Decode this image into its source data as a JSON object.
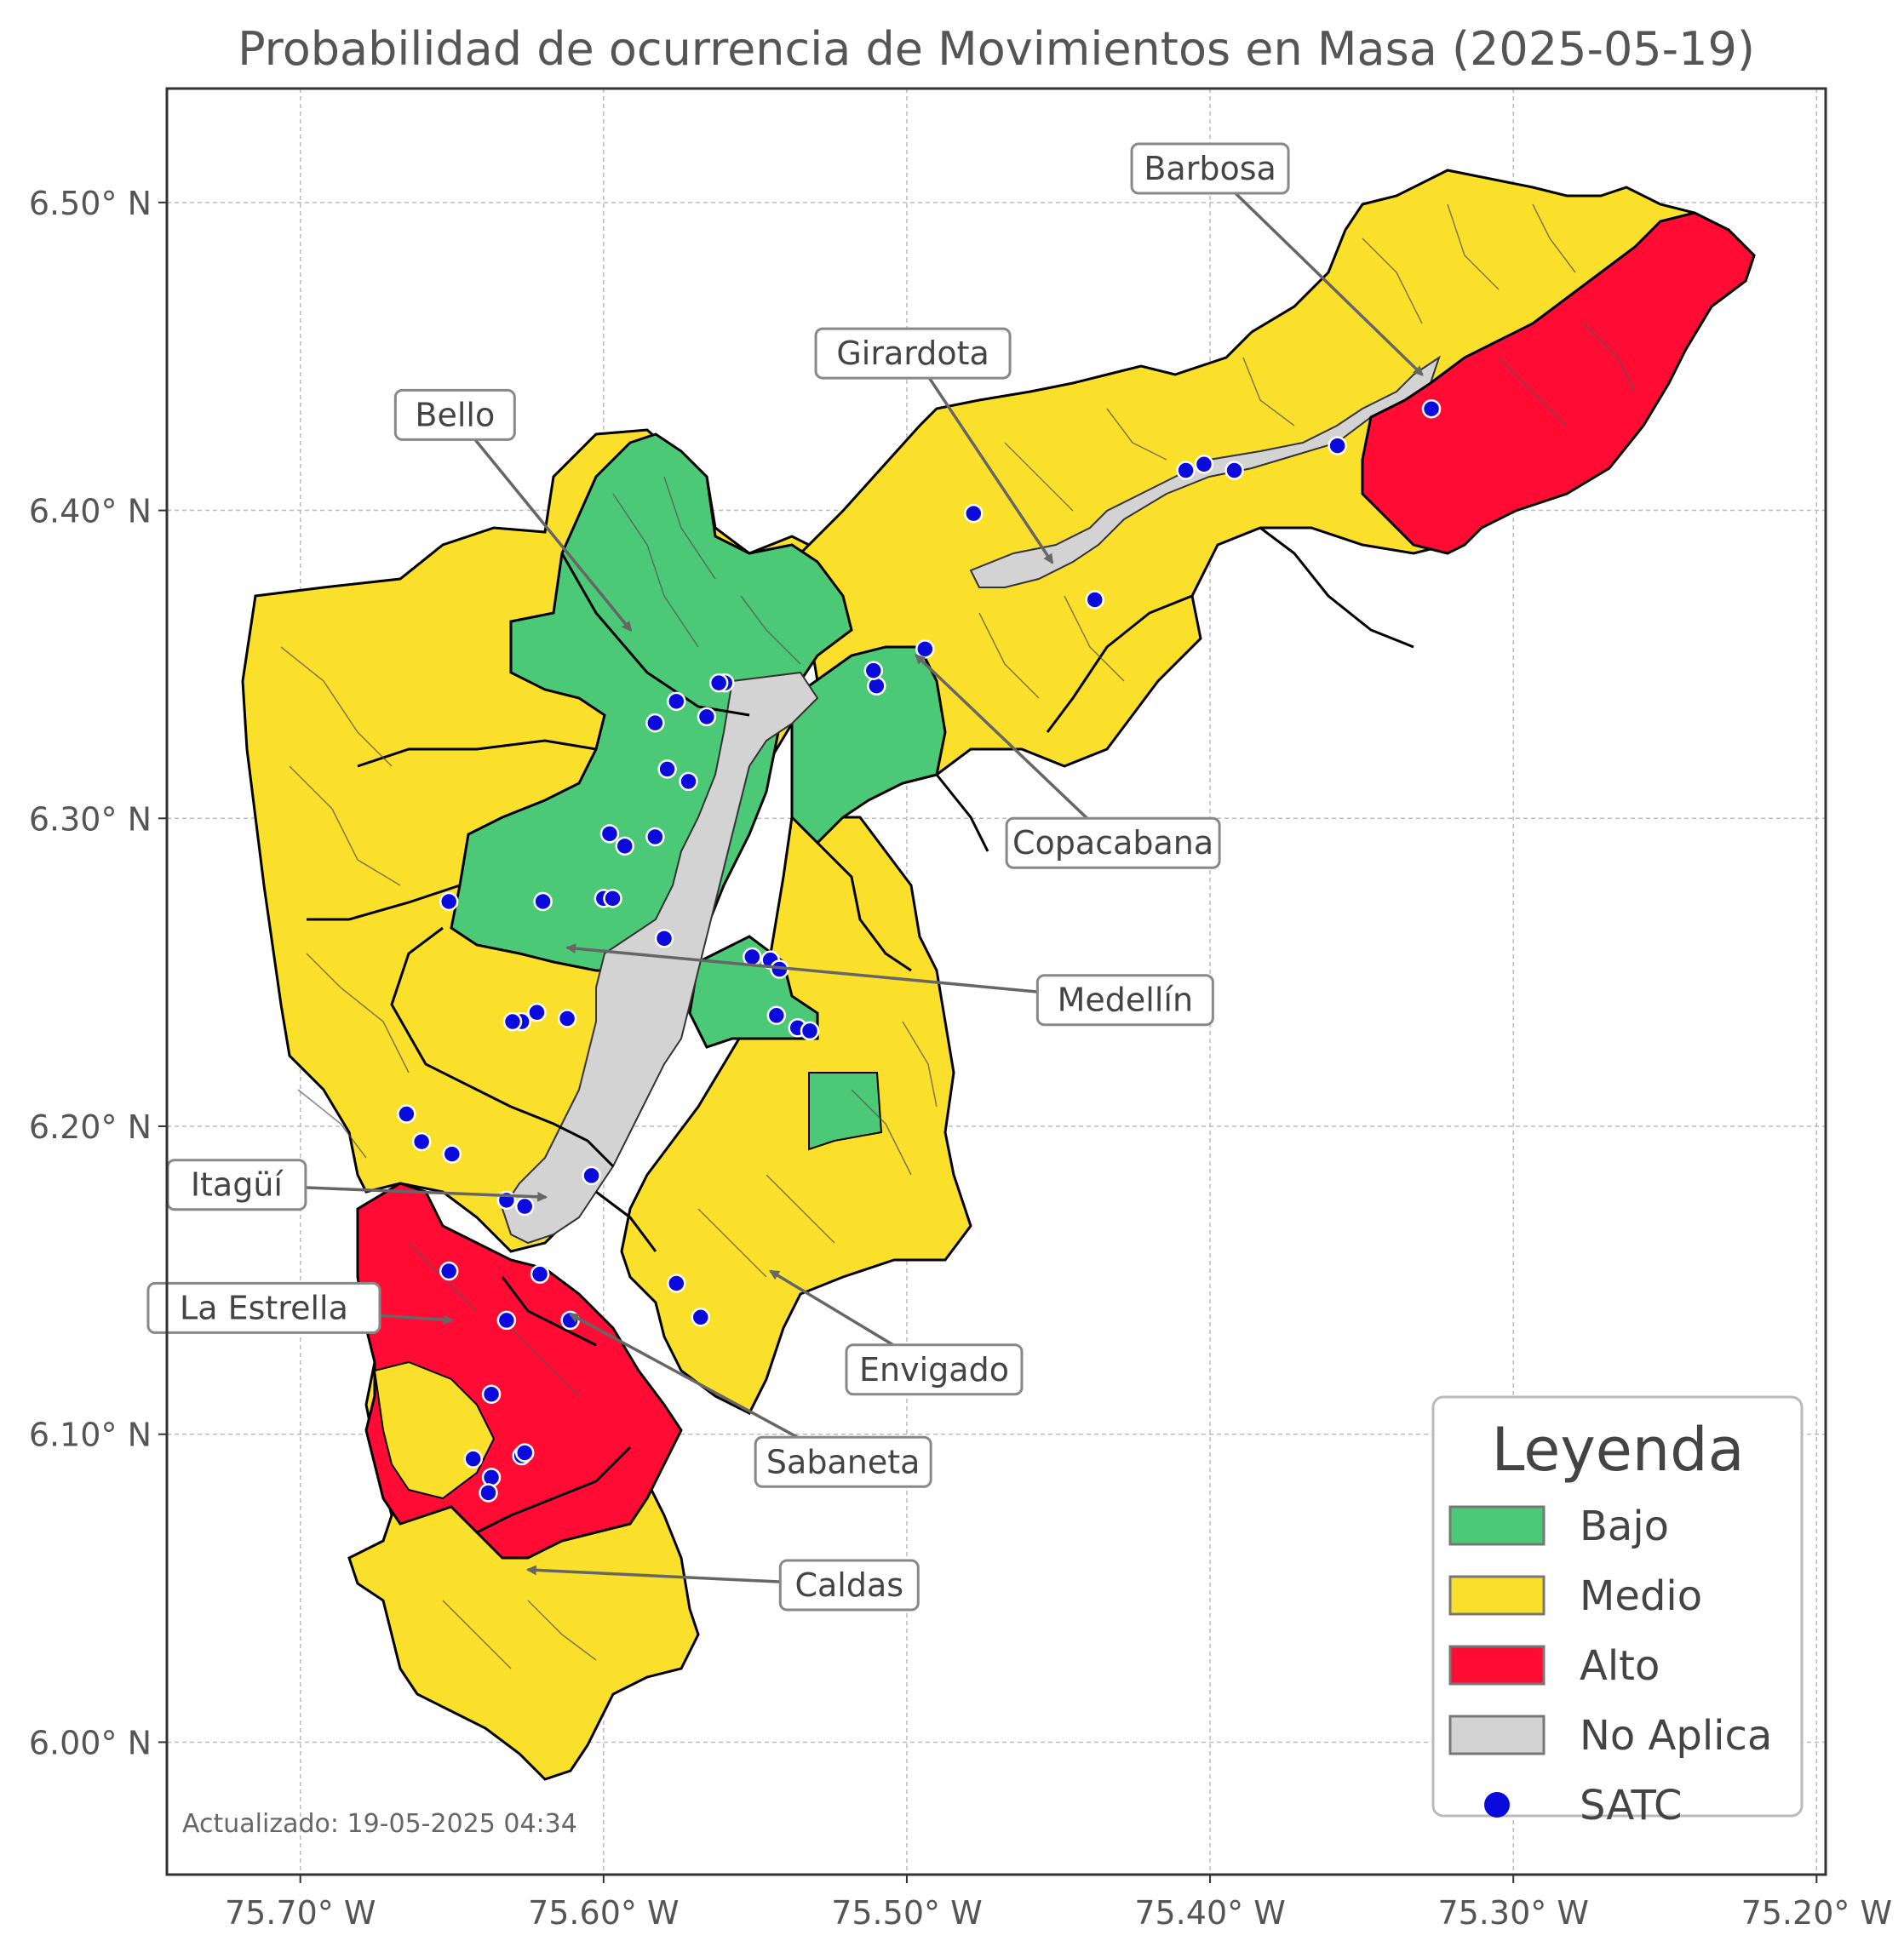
{
  "title": "Probabilidad de ocurrencia de Movimientos en Masa (2025-05-19)",
  "updated": "Actualizado: 19-05-2025 04:34",
  "axes": {
    "lon_range": [
      -75.744,
      -75.197
    ],
    "lat_range": [
      5.957,
      6.537
    ],
    "x_ticks": [
      {
        "value": -75.7,
        "label": "75.70° W"
      },
      {
        "value": -75.6,
        "label": "75.60° W"
      },
      {
        "value": -75.5,
        "label": "75.50° W"
      },
      {
        "value": -75.4,
        "label": "75.40° W"
      },
      {
        "value": -75.3,
        "label": "75.30° W"
      },
      {
        "value": -75.2,
        "label": "75.20° W"
      }
    ],
    "y_ticks": [
      {
        "value": 6.5,
        "label": "6.50° N"
      },
      {
        "value": 6.4,
        "label": "6.40° N"
      },
      {
        "value": 6.3,
        "label": "6.30° N"
      },
      {
        "value": 6.2,
        "label": "6.20° N"
      },
      {
        "value": 6.1,
        "label": "6.10° N"
      },
      {
        "value": 6.0,
        "label": "6.00° N"
      }
    ],
    "grid": true
  },
  "colors": {
    "bajo": "#4cc977",
    "medio": "#fbe02b",
    "alto": "#ff0b33",
    "no_aplica": "#d3d3d3",
    "satc": "#0a0adc"
  },
  "legend": {
    "title": "Leyenda",
    "position": "bottom-right",
    "items": [
      {
        "key": "bajo",
        "label": "Bajo",
        "kind": "patch"
      },
      {
        "key": "medio",
        "label": "Medio",
        "kind": "patch"
      },
      {
        "key": "alto",
        "label": "Alto",
        "kind": "patch"
      },
      {
        "key": "no_aplica",
        "label": "No Aplica",
        "kind": "patch"
      },
      {
        "key": "satc",
        "label": "SATC",
        "kind": "dot"
      }
    ]
  },
  "municipalities": [
    {
      "name": "Barbosa",
      "label_lon": -75.4,
      "label_lat": 6.511,
      "target_lon": -75.33,
      "target_lat": 6.444
    },
    {
      "name": "Girardota",
      "label_lon": -75.498,
      "label_lat": 6.451,
      "target_lon": -75.452,
      "target_lat": 6.383
    },
    {
      "name": "Bello",
      "label_lon": -75.649,
      "label_lat": 6.431,
      "target_lon": -75.591,
      "target_lat": 6.361
    },
    {
      "name": "Copacabana",
      "label_lon": -75.432,
      "label_lat": 6.292,
      "target_lon": -75.497,
      "target_lat": 6.353
    },
    {
      "name": "Medellín",
      "label_lon": -75.428,
      "label_lat": 6.241,
      "target_lon": -75.612,
      "target_lat": 6.258
    },
    {
      "name": "Itagüí",
      "label_lon": -75.721,
      "label_lat": 6.181,
      "target_lon": -75.619,
      "target_lat": 6.177
    },
    {
      "name": "La Estrella",
      "label_lon": -75.712,
      "label_lat": 6.141,
      "target_lon": -75.65,
      "target_lat": 6.137
    },
    {
      "name": "Envigado",
      "label_lon": -75.491,
      "label_lat": 6.121,
      "target_lon": -75.545,
      "target_lat": 6.153
    },
    {
      "name": "Sabaneta",
      "label_lon": -75.521,
      "label_lat": 6.091,
      "target_lon": -75.611,
      "target_lat": 6.139
    },
    {
      "name": "Caldas",
      "label_lon": -75.519,
      "label_lat": 6.051,
      "target_lon": -75.625,
      "target_lat": 6.056
    }
  ],
  "satc_stations": [
    [
      -75.327,
      6.433
    ],
    [
      -75.358,
      6.421
    ],
    [
      -75.392,
      6.413
    ],
    [
      -75.402,
      6.415
    ],
    [
      -75.408,
      6.413
    ],
    [
      -75.478,
      6.399
    ],
    [
      -75.438,
      6.371
    ],
    [
      -75.494,
      6.355
    ],
    [
      -75.51,
      6.343
    ],
    [
      -75.511,
      6.348
    ],
    [
      -75.56,
      6.344
    ],
    [
      -75.562,
      6.344
    ],
    [
      -75.566,
      6.333
    ],
    [
      -75.576,
      6.338
    ],
    [
      -75.583,
      6.331
    ],
    [
      -75.579,
      6.316
    ],
    [
      -75.572,
      6.312
    ],
    [
      -75.598,
      6.295
    ],
    [
      -75.593,
      6.291
    ],
    [
      -75.583,
      6.294
    ],
    [
      -75.6,
      6.274
    ],
    [
      -75.597,
      6.274
    ],
    [
      -75.62,
      6.273
    ],
    [
      -75.651,
      6.273
    ],
    [
      -75.58,
      6.261
    ],
    [
      -75.551,
      6.255
    ],
    [
      -75.545,
      6.254
    ],
    [
      -75.542,
      6.251
    ],
    [
      -75.543,
      6.236
    ],
    [
      -75.536,
      6.232
    ],
    [
      -75.532,
      6.231
    ],
    [
      -75.622,
      6.237
    ],
    [
      -75.627,
      6.234
    ],
    [
      -75.63,
      6.234
    ],
    [
      -75.612,
      6.235
    ],
    [
      -75.665,
      6.204
    ],
    [
      -75.66,
      6.195
    ],
    [
      -75.65,
      6.191
    ],
    [
      -75.604,
      6.184
    ],
    [
      -75.632,
      6.176
    ],
    [
      -75.626,
      6.174
    ],
    [
      -75.651,
      6.153
    ],
    [
      -75.621,
      6.152
    ],
    [
      -75.576,
      6.149
    ],
    [
      -75.568,
      6.138
    ],
    [
      -75.611,
      6.137
    ],
    [
      -75.632,
      6.137
    ],
    [
      -75.637,
      6.113
    ],
    [
      -75.627,
      6.093
    ],
    [
      -75.626,
      6.094
    ],
    [
      -75.643,
      6.092
    ],
    [
      -75.637,
      6.086
    ],
    [
      -75.638,
      6.081
    ]
  ]
}
